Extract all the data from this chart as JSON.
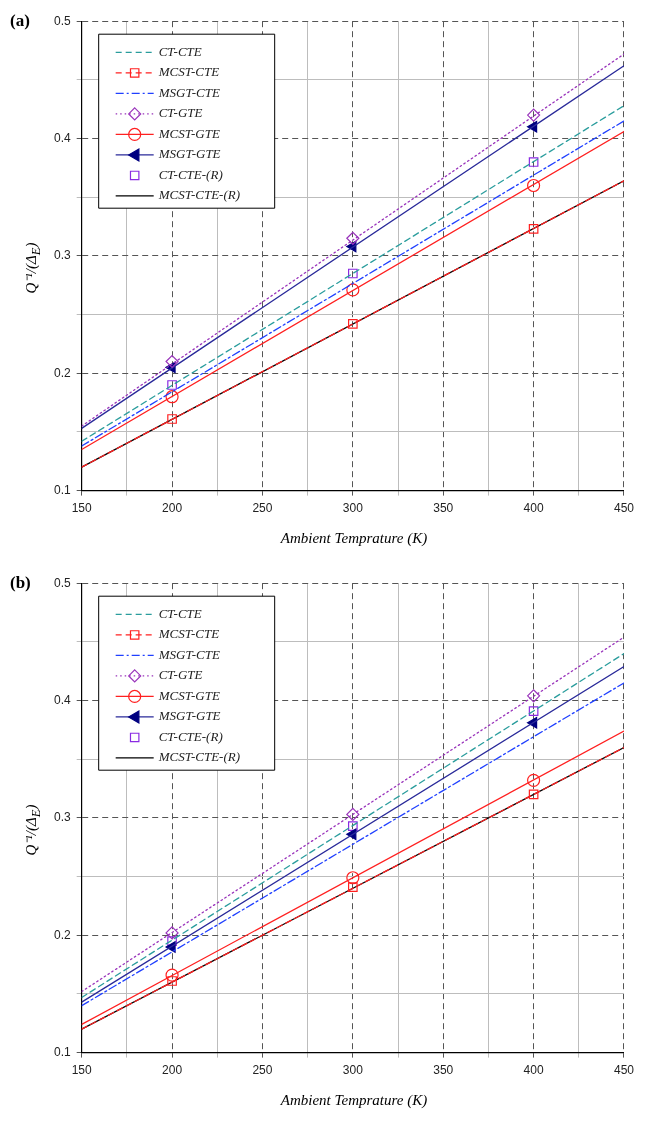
{
  "chart_data": [
    {
      "type": "line",
      "title": "(a)",
      "xlabel": "Ambient Temprature (K)",
      "ylabel": "Q⁻¹/(Δ$_{E}$)",
      "xlim": [
        150,
        450
      ],
      "ylim": [
        0.1,
        0.5
      ],
      "xticks": [
        150,
        {
          "value": 175,
          "label": null
        },
        200,
        {
          "value": 225,
          "label": null
        },
        250,
        {
          "value": 275,
          "label": null
        },
        300,
        {
          "value": 325,
          "label": null
        },
        350,
        {
          "value": 375,
          "label": null
        },
        400,
        {
          "value": 425,
          "label": null
        },
        450
      ],
      "yticks": [
        0.1,
        {
          "value": 0.15,
          "label": null
        },
        0.2,
        {
          "value": 0.25,
          "label": null
        },
        0.3,
        {
          "value": 0.35,
          "label": null
        },
        0.4,
        {
          "value": 0.45,
          "label": null
        },
        0.5
      ],
      "grid": true,
      "legend": "top left",
      "series": [
        {
          "name": "CT-CTE",
          "type": "line",
          "color": "#2a9d9d",
          "line_style": "dashed",
          "marker": "none",
          "x": [
            150,
            450
          ],
          "values": [
            0.142,
            0.428
          ]
        },
        {
          "name": "MCST-CTE",
          "type": "line",
          "color": "#ff2020",
          "line_style": "dashed",
          "marker": "none",
          "x": [
            150,
            450
          ],
          "values": [
            0.12,
            0.364
          ]
        },
        {
          "type": "scatter",
          "color": "#ff2020",
          "marker": "square",
          "x": [
            200,
            300,
            400
          ],
          "values": [
            0.161,
            0.242,
            0.323
          ]
        },
        {
          "name": "MSGT-CTE",
          "type": "line",
          "color": "#2040ff",
          "line_style": "dashdot",
          "marker": "none",
          "x": [
            150,
            450
          ],
          "values": [
            0.138,
            0.415
          ]
        },
        {
          "name": "CT-GTE",
          "type": "line",
          "color": "#9933bb",
          "line_style": "dotted",
          "marker": "none",
          "x": [
            150,
            450
          ],
          "values": [
            0.155,
            0.472
          ]
        },
        {
          "type": "scatter",
          "color": "#9933bb",
          "marker": "diamond",
          "x": [
            200,
            300,
            400
          ],
          "values": [
            0.21,
            0.315,
            0.42
          ]
        },
        {
          "name": "MCST-GTE",
          "type": "line",
          "color": "#ff2020",
          "line_style": "solid",
          "marker": "none",
          "x": [
            150,
            450
          ],
          "values": [
            0.135,
            0.406
          ]
        },
        {
          "type": "scatter",
          "color": "#ff2020",
          "marker": "circle",
          "x": [
            200,
            300,
            400
          ],
          "values": [
            0.18,
            0.271,
            0.36
          ]
        },
        {
          "name": "MSGT-GTE",
          "type": "line",
          "color": "#2a2a9a",
          "line_style": "solid",
          "marker": "none",
          "x": [
            150,
            450
          ],
          "values": [
            0.153,
            0.462
          ]
        },
        {
          "type": "scatter",
          "color": "#000080",
          "marker": "triangle",
          "x": [
            200,
            300,
            400
          ],
          "values": [
            0.205,
            0.308,
            0.41
          ]
        },
        {
          "name": "CT-CTE-(R)",
          "type": "scatter",
          "color": "#8a2be2",
          "marker": "square",
          "x": [
            200,
            300,
            400
          ],
          "values": [
            0.19,
            0.285,
            0.38
          ]
        },
        {
          "name": "MCST-CTE-(R)",
          "type": "line",
          "color": "#000000",
          "line_style": "solid",
          "marker": "none",
          "x": [
            150,
            450
          ],
          "values": [
            0.12,
            0.364
          ]
        }
      ]
    },
    {
      "type": "line",
      "title": "(b)",
      "xlabel": "Ambient Temprature (K)",
      "ylabel": "Q⁻¹/(Δ$_{E}$)",
      "xlim": [
        150,
        450
      ],
      "ylim": [
        0.1,
        0.5
      ],
      "xticks": [
        150,
        {
          "value": 175,
          "label": null
        },
        200,
        {
          "value": 225,
          "label": null
        },
        250,
        {
          "value": 275,
          "label": null
        },
        300,
        {
          "value": 325,
          "label": null
        },
        350,
        {
          "value": 375,
          "label": null
        },
        400,
        {
          "value": 425,
          "label": null
        },
        450
      ],
      "yticks": [
        0.1,
        {
          "value": 0.15,
          "label": null
        },
        0.2,
        {
          "value": 0.25,
          "label": null
        },
        0.3,
        {
          "value": 0.35,
          "label": null
        },
        0.4,
        {
          "value": 0.45,
          "label": null
        },
        0.5
      ],
      "grid": true,
      "legend": "top left",
      "series": [
        {
          "name": "CT-CTE",
          "type": "line",
          "color": "#2a9d9d",
          "line_style": "dashed",
          "marker": "none",
          "x": [
            150,
            450
          ],
          "values": [
            0.147,
            0.44
          ]
        },
        {
          "name": "MCST-CTE",
          "type": "line",
          "color": "#ff2020",
          "line_style": "dashed",
          "marker": "none",
          "x": [
            150,
            450
          ],
          "values": [
            0.12,
            0.36
          ]
        },
        {
          "type": "scatter",
          "color": "#ff2020",
          "marker": "square",
          "x": [
            200,
            300,
            400
          ],
          "values": [
            0.161,
            0.241,
            0.32
          ]
        },
        {
          "name": "MSGT-CTE",
          "type": "line",
          "color": "#2040ff",
          "line_style": "dashdot",
          "marker": "none",
          "x": [
            150,
            450
          ],
          "values": [
            0.14,
            0.415
          ]
        },
        {
          "name": "CT-GTE",
          "type": "line",
          "color": "#9933bb",
          "line_style": "dotted",
          "marker": "none",
          "x": [
            150,
            450
          ],
          "values": [
            0.152,
            0.454
          ]
        },
        {
          "type": "scatter",
          "color": "#9933bb",
          "marker": "diamond",
          "x": [
            200,
            300,
            400
          ],
          "values": [
            0.202,
            0.303,
            0.404
          ]
        },
        {
          "name": "MCST-GTE",
          "type": "line",
          "color": "#ff2020",
          "line_style": "solid",
          "marker": "none",
          "x": [
            150,
            450
          ],
          "values": [
            0.124,
            0.374
          ]
        },
        {
          "type": "scatter",
          "color": "#ff2020",
          "marker": "circle",
          "x": [
            200,
            300,
            400
          ],
          "values": [
            0.166,
            0.249,
            0.332
          ]
        },
        {
          "name": "MSGT-GTE",
          "type": "line",
          "color": "#2a2a9a",
          "line_style": "solid",
          "marker": "none",
          "x": [
            150,
            450
          ],
          "values": [
            0.143,
            0.429
          ]
        },
        {
          "type": "scatter",
          "color": "#000080",
          "marker": "triangle",
          "x": [
            200,
            300,
            400
          ],
          "values": [
            0.19,
            0.286,
            0.381
          ]
        },
        {
          "name": "CT-CTE-(R)",
          "type": "scatter",
          "color": "#8a2be2",
          "marker": "square",
          "x": [
            200,
            300,
            400
          ],
          "values": [
            0.195,
            0.293,
            0.391
          ]
        },
        {
          "name": "MCST-CTE-(R)",
          "type": "line",
          "color": "#000000",
          "line_style": "solid",
          "marker": "none",
          "x": [
            150,
            450
          ],
          "values": [
            0.12,
            0.36
          ]
        }
      ]
    }
  ]
}
